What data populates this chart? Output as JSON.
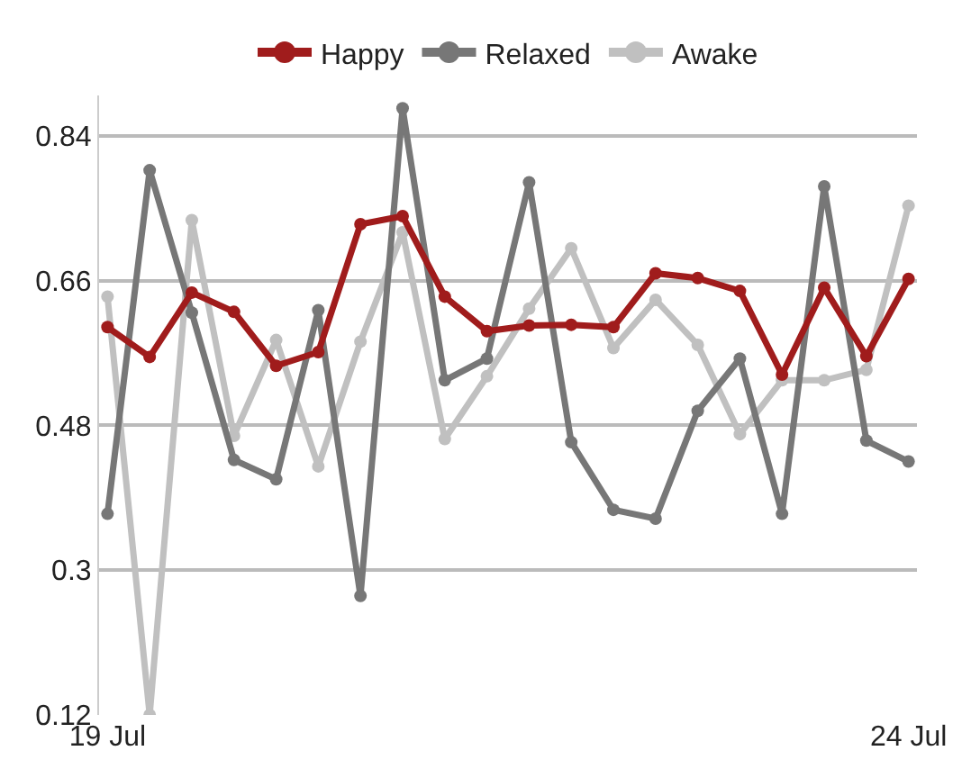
{
  "chart_data": {
    "type": "line",
    "categories": [
      "19 Jul",
      null,
      null,
      null,
      null,
      null,
      null,
      null,
      null,
      null,
      null,
      null,
      null,
      null,
      null,
      null,
      null,
      null,
      null,
      "24 Jul"
    ],
    "series": [
      {
        "name": "Happy",
        "color": "#a01c1c",
        "values": [
          0.602,
          0.565,
          0.645,
          0.621,
          0.554,
          0.571,
          0.73,
          0.74,
          0.64,
          0.597,
          0.604,
          0.605,
          0.602,
          0.669,
          0.663,
          0.647,
          0.543,
          0.651,
          0.566,
          0.662
        ]
      },
      {
        "name": "Relaxed",
        "color": "#777777",
        "values": [
          0.37,
          0.797,
          0.62,
          0.437,
          0.413,
          0.623,
          0.268,
          0.874,
          0.536,
          0.563,
          0.782,
          0.459,
          0.375,
          0.364,
          0.498,
          0.563,
          0.37,
          0.777,
          0.461,
          0.435
        ]
      },
      {
        "name": "Awake",
        "color": "#c0c0c0",
        "values": [
          0.64,
          0.12,
          0.735,
          0.467,
          0.586,
          0.429,
          0.584,
          0.72,
          0.463,
          0.541,
          0.625,
          0.7,
          0.576,
          0.636,
          0.58,
          0.469,
          0.536,
          0.536,
          0.549,
          0.753
        ]
      }
    ],
    "ylim": [
      0.12,
      0.89
    ],
    "yticks": [
      0.12,
      0.3,
      0.48,
      0.66,
      0.84
    ],
    "grid": "y",
    "legend": "top",
    "marker": "circle",
    "line_style": "solid"
  }
}
